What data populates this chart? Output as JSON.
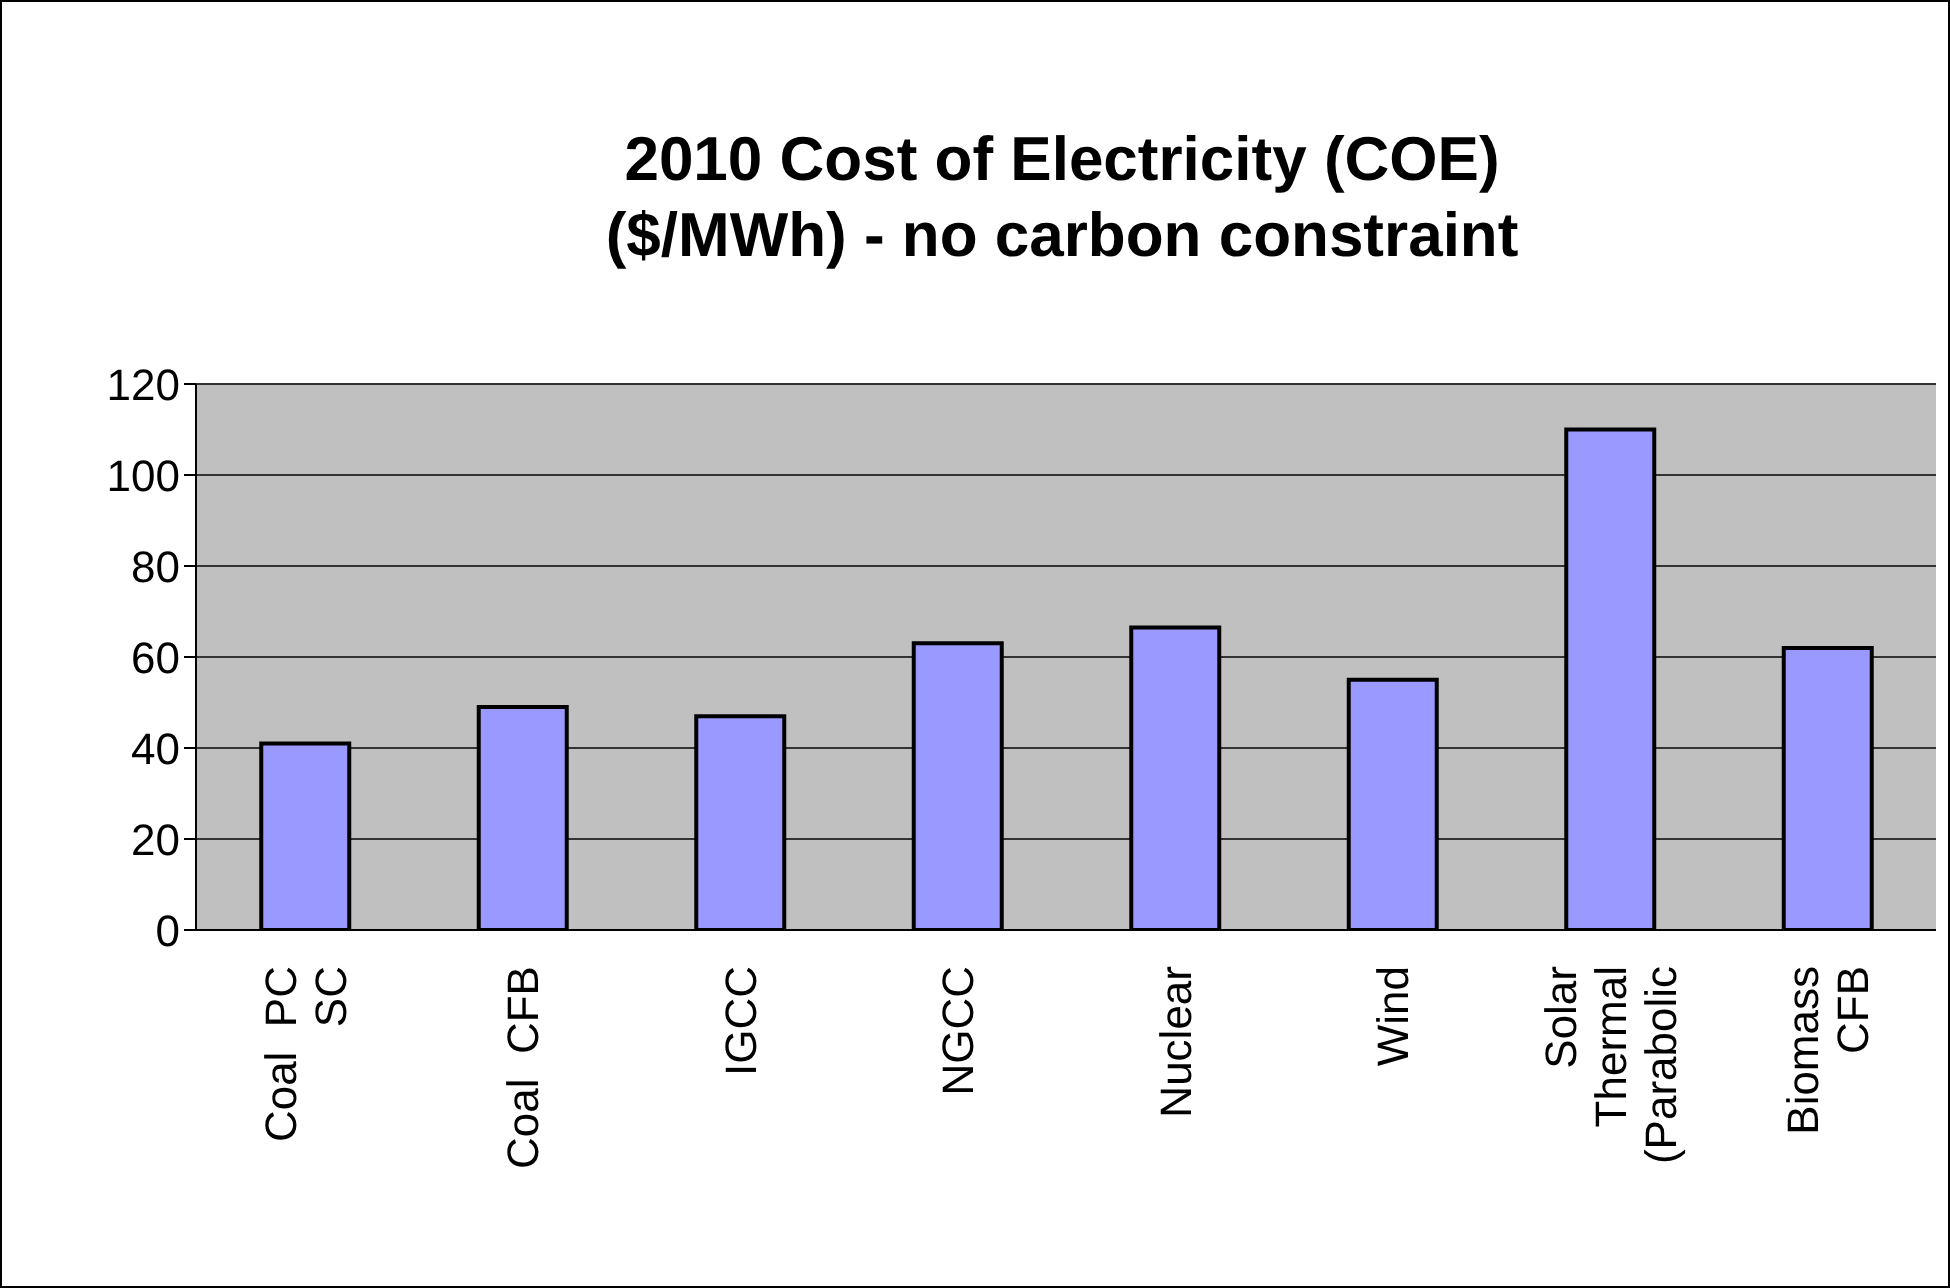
{
  "chart_data": {
    "type": "bar",
    "title": "2010 Cost of Electricity (COE) ($/MWh) - no carbon constraint",
    "categories": [
      "Coal  PC SC",
      "Coal  CFB",
      "IGCC",
      "NGCC",
      "Nuclear",
      "Wind",
      "Solar Thermal (Parabolic",
      "Biomass CFB"
    ],
    "values": [
      41,
      49,
      47,
      63,
      66.5,
      55,
      110,
      62
    ],
    "color": "#9999ff",
    "ylim": [
      0,
      120
    ],
    "yticks": [
      0,
      20,
      40,
      60,
      80,
      100,
      120
    ],
    "grid": "y",
    "legend": false
  }
}
